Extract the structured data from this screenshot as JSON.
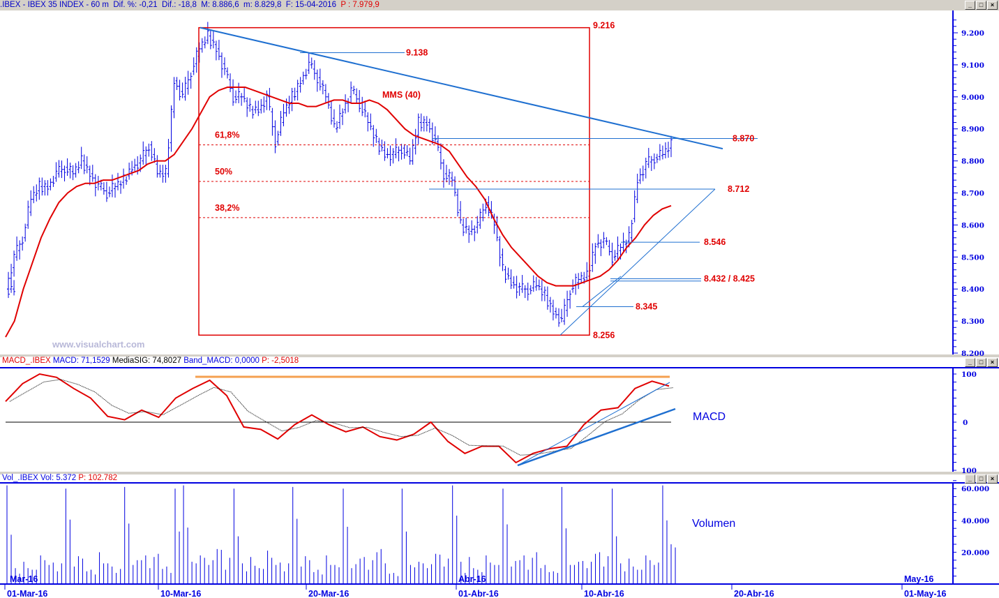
{
  "window": {
    "title_parts": [
      ".IBEX - IBEX 35 INDEX -  60 m",
      "Dif. %: -0,21",
      "Dif.: -18,8",
      "M: 8.886,6",
      "m: 8.829,8",
      "F: 15-04-2016"
    ],
    "title_price": "P : 7.979,9",
    "buttons": {
      "minimize": "_",
      "maximize": "□",
      "close": "×"
    }
  },
  "watermark": "www.visualchart.com",
  "macd_header": {
    "name": "MACD_.IBEX",
    "macd": "MACD: 71,1529",
    "signal": "MediaSIG: 74,8027",
    "band": "Band_MACD: 0,0000",
    "p": "P: -2,5018"
  },
  "vol_header": {
    "name": "Vol_.IBEX",
    "vol": "Vol: 5.372",
    "p": "P: 102.782"
  },
  "panel_labels": {
    "macd": "MACD",
    "volume": "Volumen"
  },
  "colors": {
    "axis": "#0000e0",
    "price_bars": "#0000e0",
    "mms": "#e00000",
    "trend": "#1e6fd0",
    "annot": "#e00000",
    "macd_top": "#f5a050"
  },
  "chart_data": [
    {
      "type": "ohlc",
      "title": "IBEX 35 INDEX 60 m",
      "ylim": [
        8200,
        9250
      ],
      "y_ticks": [
        "9.200",
        "9.100",
        "9.000",
        "8.900",
        "8.800",
        "8.700",
        "8.600",
        "8.500",
        "8.400",
        "8.300",
        "8.200"
      ],
      "x_ticks": [
        "01-Mar-16",
        "10-Mar-16",
        "20-Mar-16",
        "01-Abr-16",
        "10-Abr-16",
        "20-Abr-16",
        "01-May-16"
      ],
      "month_marks": [
        "Mar-16",
        "Abr-16",
        "May-16"
      ],
      "closes": [
        8400,
        8500,
        8560,
        8680,
        8720,
        8720,
        8760,
        8780,
        8760,
        8800,
        8760,
        8720,
        8700,
        8720,
        8740,
        8780,
        8800,
        8850,
        8760,
        8760,
        9050,
        9000,
        9080,
        9150,
        9190,
        9150,
        9080,
        9000,
        9000,
        8960,
        8960,
        9000,
        8860,
        8950,
        9000,
        9050,
        9100,
        9060,
        9000,
        8900,
        8960,
        9020,
        8980,
        8920,
        8860,
        8820,
        8820,
        8840,
        8800,
        8920,
        8920,
        8860,
        8760,
        8740,
        8600,
        8580,
        8600,
        8670,
        8600,
        8460,
        8420,
        8400,
        8400,
        8410,
        8380,
        8330,
        8300,
        8400,
        8430,
        8440,
        8540,
        8550,
        8500,
        8530,
        8560,
        8740,
        8790,
        8810,
        8820,
        8850
      ],
      "mms_label": "MMS (40)",
      "mms": [
        8250,
        8300,
        8400,
        8480,
        8560,
        8620,
        8670,
        8700,
        8720,
        8730,
        8730,
        8740,
        8740,
        8750,
        8760,
        8770,
        8790,
        8800,
        8800,
        8820,
        8860,
        8900,
        8950,
        9000,
        9020,
        9030,
        9030,
        9030,
        9020,
        9010,
        9000,
        8990,
        8980,
        8980,
        8970,
        8970,
        8980,
        8990,
        8990,
        8980,
        8980,
        8990,
        8980,
        8960,
        8930,
        8900,
        8880,
        8870,
        8860,
        8850,
        8830,
        8790,
        8750,
        8720,
        8680,
        8620,
        8570,
        8530,
        8500,
        8470,
        8440,
        8420,
        8410,
        8410,
        8410,
        8420,
        8430,
        8440,
        8460,
        8490,
        8530,
        8560,
        8600,
        8630,
        8650,
        8660
      ],
      "levels": [
        {
          "label": "9.216",
          "value": 9216
        },
        {
          "label": "9.138",
          "value": 9138
        },
        {
          "label": "8.870",
          "value": 8870
        },
        {
          "label": "8.712",
          "value": 8712
        },
        {
          "label": "8.546",
          "value": 8546
        },
        {
          "label": "8.432 / 8.425",
          "value": 8432,
          "value2": 8425
        },
        {
          "label": "8.345",
          "value": 8345
        },
        {
          "label": "8.256",
          "value": 8256
        }
      ],
      "fibonacci": [
        {
          "label": "61,8%",
          "value": 8850
        },
        {
          "label": "50%",
          "value": 8736
        },
        {
          "label": "38,2%",
          "value": 8623
        }
      ]
    },
    {
      "type": "line",
      "title": "MACD",
      "ylim": [
        -100,
        100
      ],
      "y_ticks": [
        "100",
        "0",
        "100"
      ],
      "macd": [
        43,
        80,
        100,
        93,
        70,
        50,
        12,
        5,
        25,
        10,
        50,
        70,
        87,
        55,
        -10,
        -15,
        -35,
        -5,
        15,
        -5,
        -20,
        -10,
        -30,
        -37,
        -25,
        0,
        -40,
        -65,
        -50,
        -50,
        -84,
        -65,
        -55,
        -50,
        -5,
        25,
        30,
        70,
        85,
        75
      ]
    },
    {
      "type": "bar",
      "title": "Volumen",
      "ylim": [
        0,
        65000
      ],
      "y_ticks": [
        "60.000",
        "40.000",
        "20.000"
      ],
      "values": [
        62000,
        10000,
        14000,
        9000,
        18000,
        12000,
        8000,
        60000,
        11000,
        16000,
        9000,
        20000,
        13000,
        7000,
        61000,
        12000,
        15000,
        10000,
        19000,
        11000,
        60000,
        62000,
        14000,
        18000,
        12000,
        22000,
        9000,
        60000,
        13000,
        17000,
        10000,
        21000,
        12000,
        8000,
        61000,
        11000,
        15000,
        9000,
        18000,
        12000,
        60000,
        10000,
        16000,
        9000,
        20000,
        13000,
        7000,
        60000,
        12000,
        14000,
        10000,
        19000,
        11000,
        62000,
        14000,
        17000,
        9000,
        18000,
        12000,
        60000,
        11000,
        15000,
        9000,
        20000,
        12000,
        8000,
        61000,
        12000,
        14000,
        10000,
        19000,
        11000,
        60000,
        13000,
        16000,
        9000,
        18000,
        12000,
        62000,
        25000
      ]
    }
  ]
}
